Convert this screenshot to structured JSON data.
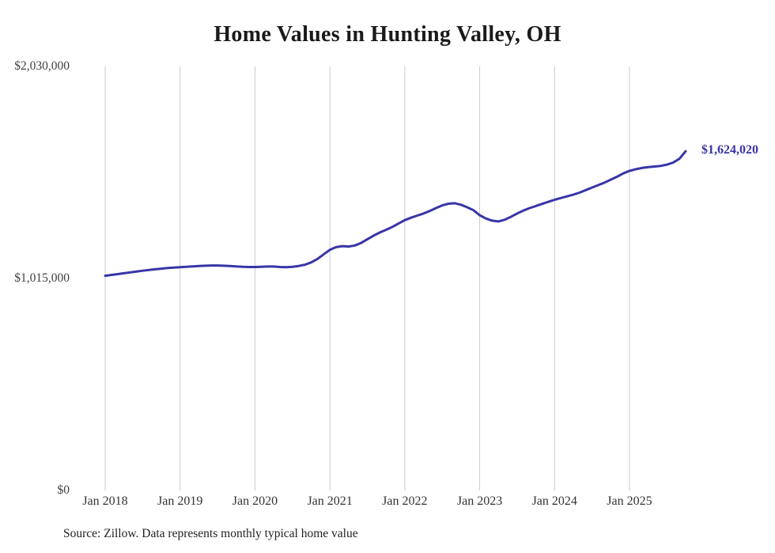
{
  "title": "Home Values in Hunting Valley, OH",
  "source_note": "Source: Zillow. Data represents monthly typical home value",
  "end_label": "$1,624,020",
  "colors": {
    "line": "#3935a8",
    "grid": "#cacaca",
    "title": "#1a1a1a",
    "axis_text": "#333333"
  },
  "chart_data": {
    "type": "line",
    "title": "Home Values in Hunting Valley, OH",
    "xlabel": "",
    "ylabel": "",
    "ylim": [
      0,
      2030000
    ],
    "grid": "vertical-only",
    "legend": "none",
    "x_tick_labels": [
      "Jan 2018",
      "Jan 2019",
      "Jan 2020",
      "Jan 2021",
      "Jan 2022",
      "Jan 2023",
      "Jan 2024",
      "Jan 2025"
    ],
    "y_ticks": [
      {
        "label": "$2,030,000",
        "value": 2030000
      },
      {
        "label": "$1,015,000",
        "value": 1015000
      },
      {
        "label": "$0",
        "value": 0
      }
    ],
    "series": [
      {
        "name": "Typical home value",
        "start_month": "2018-01",
        "frequency": "monthly",
        "end_value_label": "$1,624,020",
        "values": [
          1028000,
          1032000,
          1036000,
          1040000,
          1044000,
          1048000,
          1052000,
          1056000,
          1059000,
          1062000,
          1065000,
          1067000,
          1069000,
          1071000,
          1073000,
          1075000,
          1076000,
          1077000,
          1077000,
          1076000,
          1075000,
          1073000,
          1071000,
          1070000,
          1070000,
          1071000,
          1072000,
          1072000,
          1070000,
          1069000,
          1071000,
          1075000,
          1081000,
          1092000,
          1108000,
          1130000,
          1152000,
          1165000,
          1170000,
          1168000,
          1173000,
          1185000,
          1203000,
          1220000,
          1235000,
          1248000,
          1262000,
          1278000,
          1294000,
          1306000,
          1316000,
          1326000,
          1338000,
          1352000,
          1365000,
          1373000,
          1375000,
          1368000,
          1356000,
          1342000,
          1318000,
          1302000,
          1292000,
          1288000,
          1296000,
          1310000,
          1326000,
          1340000,
          1352000,
          1362000,
          1372000,
          1382000,
          1392000,
          1400000,
          1408000,
          1416000,
          1426000,
          1438000,
          1450000,
          1462000,
          1474000,
          1488000,
          1502000,
          1518000,
          1530000,
          1538000,
          1544000,
          1548000,
          1551000,
          1554000,
          1560000,
          1570000,
          1588000,
          1624020
        ]
      }
    ]
  }
}
